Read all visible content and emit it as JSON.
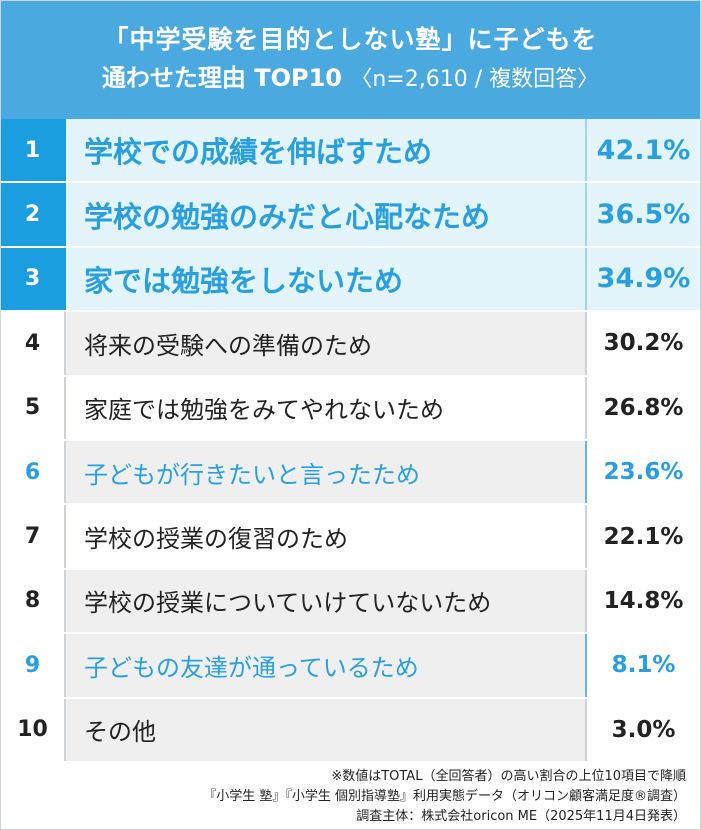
{
  "title": {
    "line1": "「中学受験を目的としない塾」に子どもを",
    "line2_main": "通わせた理由 TOP10",
    "line2_note": "〈n=2,610 / 複数回答〉"
  },
  "rows": [
    {
      "rank": "1",
      "reason": "学校での成績を伸ばすため",
      "pct": "42.1%"
    },
    {
      "rank": "2",
      "reason": "学校の勉強のみだと心配なため",
      "pct": "36.5%"
    },
    {
      "rank": "3",
      "reason": "家では勉強をしないため",
      "pct": "34.9%"
    },
    {
      "rank": "4",
      "reason": "将来の受験への準備のため",
      "pct": "30.2%"
    },
    {
      "rank": "5",
      "reason": "家庭では勉強をみてやれないため",
      "pct": "26.8%"
    },
    {
      "rank": "6",
      "reason": "子どもが行きたいと言ったため",
      "pct": "23.6%"
    },
    {
      "rank": "7",
      "reason": "学校の授業の復習のため",
      "pct": "22.1%"
    },
    {
      "rank": "8",
      "reason": "学校の授業についていけていないため",
      "pct": "14.8%"
    },
    {
      "rank": "9",
      "reason": "子どもの友達が通っているため",
      "pct": "8.1%"
    },
    {
      "rank": "10",
      "reason": "その他",
      "pct": "3.0%"
    }
  ],
  "footer": {
    "note1": "※数値はTOTAL（全回答者）の高い割合の上位10項目で降順",
    "note2": "『小学生 塾』『小学生 個別指導塾』利用実態データ（オリコン顧客満足度®調査）",
    "note3": "調査主体：株式会社oricon ME（2025年11月4日発表）"
  },
  "colors": {
    "header": "#4aa9df",
    "accent": "#1a9ee0",
    "highlight_text": "#2a9fe0",
    "row_gray": "#efefef"
  }
}
